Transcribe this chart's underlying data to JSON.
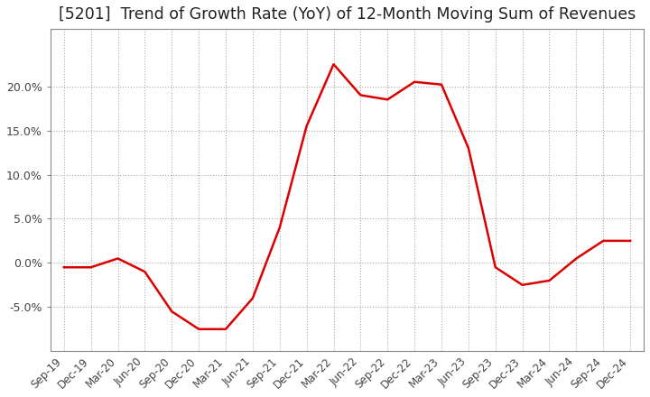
{
  "title": "[5201]  Trend of Growth Rate (YoY) of 12-Month Moving Sum of Revenues",
  "title_fontsize": 12.5,
  "line_color": "#dd0000",
  "background_color": "#ffffff",
  "grid_color": "#aaaaaa",
  "x_labels": [
    "Sep-19",
    "Dec-19",
    "Mar-20",
    "Jun-20",
    "Sep-20",
    "Dec-20",
    "Mar-21",
    "Jun-21",
    "Sep-21",
    "Dec-21",
    "Mar-22",
    "Jun-22",
    "Sep-22",
    "Dec-22",
    "Mar-23",
    "Jun-23",
    "Sep-23",
    "Dec-23",
    "Mar-24",
    "Jun-24",
    "Sep-24",
    "Dec-24"
  ],
  "y_values": [
    -0.005,
    -0.005,
    0.005,
    -0.01,
    -0.055,
    -0.075,
    -0.075,
    -0.04,
    0.04,
    0.155,
    0.225,
    0.19,
    0.185,
    0.205,
    0.202,
    0.13,
    -0.005,
    -0.025,
    -0.02,
    0.005,
    0.025,
    0.025
  ],
  "ylim": [
    -0.1,
    0.265
  ],
  "yticks": [
    -0.05,
    0.0,
    0.05,
    0.1,
    0.15,
    0.2
  ],
  "tick_color": "#444444",
  "spine_color": "#888888"
}
